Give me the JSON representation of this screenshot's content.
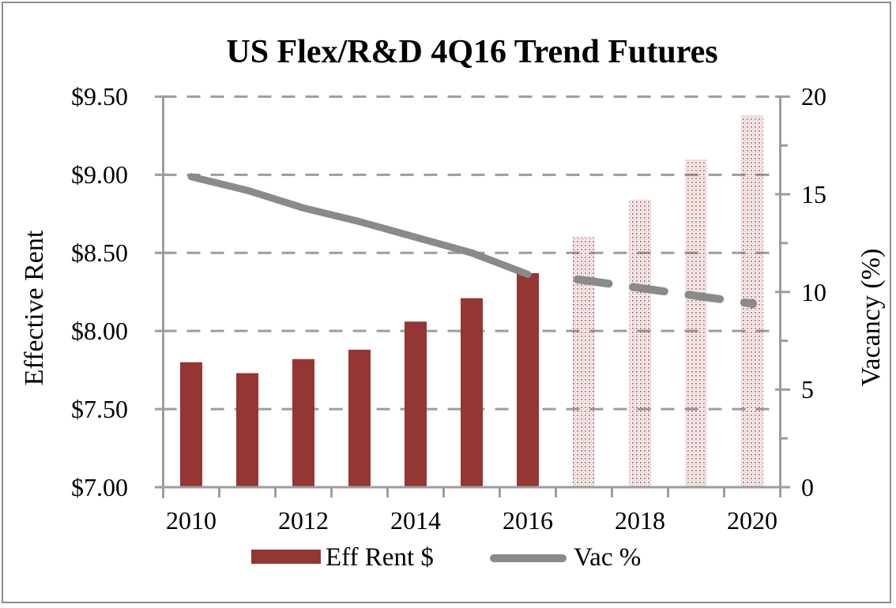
{
  "colors": {
    "bar_red": "#943634",
    "line_gray": "#8a8a8a",
    "grid_gray": "#9d9d9d",
    "axis_gray": "#9d9d9d",
    "border_gray": "#8e8e8e",
    "text": "#000000"
  },
  "chart_data": {
    "type": "bar+line combo",
    "title": "US Flex/R&D 4Q16 Trend Futures",
    "categories": [
      "2010",
      "2011",
      "2012",
      "2013",
      "2014",
      "2015",
      "2016",
      "2017",
      "2018",
      "2019",
      "2020"
    ],
    "forecast_start_index": 7,
    "series": [
      {
        "name": "Eff Rent $",
        "type": "bar",
        "axis": "left",
        "color": "#943634",
        "forecast_style": "dotted-pattern-fill",
        "values": [
          7.8,
          7.73,
          7.82,
          7.88,
          8.06,
          8.21,
          8.37,
          8.6,
          8.84,
          9.1,
          9.38
        ]
      },
      {
        "name": "Vac %",
        "type": "line",
        "axis": "right",
        "color": "#8a8a8a",
        "forecast_style": "dashed",
        "values": [
          15.9,
          15.2,
          14.3,
          13.6,
          12.8,
          12.0,
          10.9,
          10.6,
          10.2,
          9.8,
          9.4
        ]
      }
    ],
    "left_axis": {
      "title": "Effective Rent",
      "min": 7.0,
      "max": 9.5,
      "step": 0.5,
      "tick_labels": [
        "$9.50",
        "$9.00",
        "$8.50",
        "$8.00",
        "$7.50",
        "$7.00"
      ]
    },
    "right_axis": {
      "title": "Vacancy (%)",
      "min": 0,
      "max": 20,
      "step": 5,
      "minor_step": 2.5,
      "tick_labels": [
        "20",
        "15",
        "10",
        "5",
        "0"
      ]
    },
    "x_tick_labels": [
      "2010",
      "2012",
      "2014",
      "2016",
      "2018",
      "2020"
    ],
    "grid": "horizontal-dashed",
    "legend_position": "bottom"
  },
  "legend": [
    {
      "label": "Eff Rent $"
    },
    {
      "label": "Vac %"
    }
  ]
}
